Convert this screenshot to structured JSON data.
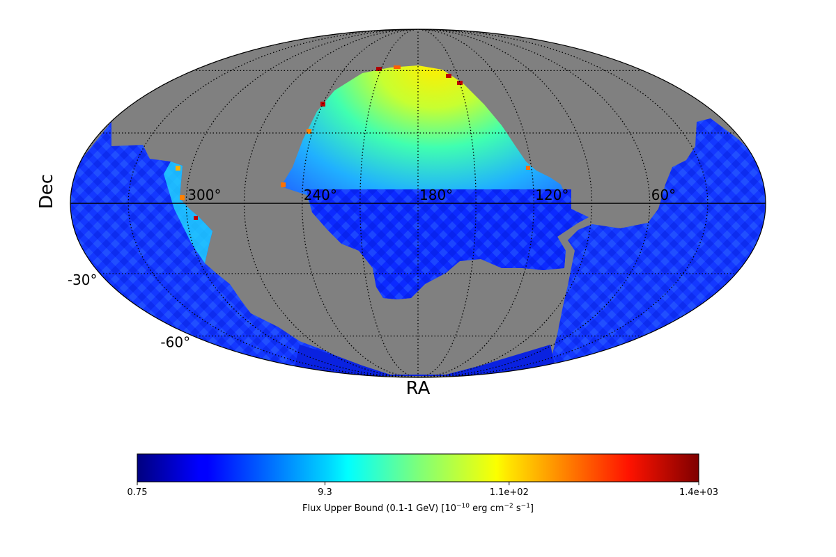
{
  "axes": {
    "xlabel": "RA",
    "ylabel": "Dec",
    "ra_ticks": [
      {
        "ra": 300,
        "label": "300°"
      },
      {
        "ra": 240,
        "label": "240°"
      },
      {
        "ra": 180,
        "label": "180°"
      },
      {
        "ra": 120,
        "label": "120°"
      },
      {
        "ra": 60,
        "label": "60°"
      }
    ],
    "dec_ticks": [
      {
        "dec": -30,
        "label": "-30°"
      },
      {
        "dec": -60,
        "label": "-60°"
      }
    ],
    "ra_grid_deg": [
      0,
      30,
      60,
      90,
      120,
      150,
      180,
      210,
      240,
      270,
      300,
      330
    ],
    "dec_grid_deg": [
      -60,
      -30,
      30,
      60
    ],
    "projection": "mollweide",
    "ra_direction": "increasing-left"
  },
  "colors": {
    "no_data": "#808080",
    "ocean_outline": "#000000"
  },
  "colorbar": {
    "colormap": "jet",
    "scale": "log",
    "min": 0.75,
    "max": 1400,
    "ticks": [
      {
        "value": 0.75,
        "label": "0.75"
      },
      {
        "value": 9.3,
        "label": "9.3"
      },
      {
        "value": 110,
        "label": "1.1e+02"
      },
      {
        "value": 1400,
        "label": "1.4e+03"
      }
    ],
    "label_main": "Flux Upper Bound (0.1-1 GeV) [10",
    "label_exp1": "−10",
    "label_mid": " erg cm",
    "label_exp2": "−2",
    "label_mid2": " s",
    "label_exp3": "−1",
    "label_end": "]"
  }
}
